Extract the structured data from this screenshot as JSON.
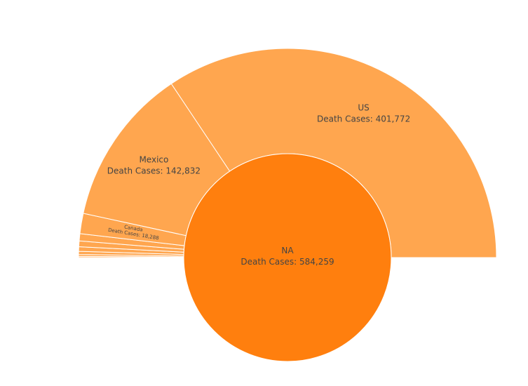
{
  "chart_data": {
    "type": "sunburst",
    "value_label": "Death Cases",
    "root": {
      "name": "NA",
      "value": 584259,
      "value_text": "584,259",
      "color": "#ff7f0e"
    },
    "children_color": "#ffa64f",
    "children": [
      {
        "name": "US",
        "value": 401772,
        "value_text": "401,772"
      },
      {
        "name": "Mexico",
        "value": 142832,
        "value_text": "142,832"
      },
      {
        "name": "Canada",
        "value": 18288,
        "value_text": "18,288"
      },
      {
        "name": "",
        "value": 6500,
        "value_text": ""
      },
      {
        "name": "",
        "value": 5200,
        "value_text": ""
      },
      {
        "name": "",
        "value": 4100,
        "value_text": ""
      },
      {
        "name": "",
        "value": 2800,
        "value_text": ""
      },
      {
        "name": "",
        "value": 1700,
        "value_text": ""
      },
      {
        "name": "",
        "value": 1067,
        "value_text": ""
      }
    ]
  }
}
